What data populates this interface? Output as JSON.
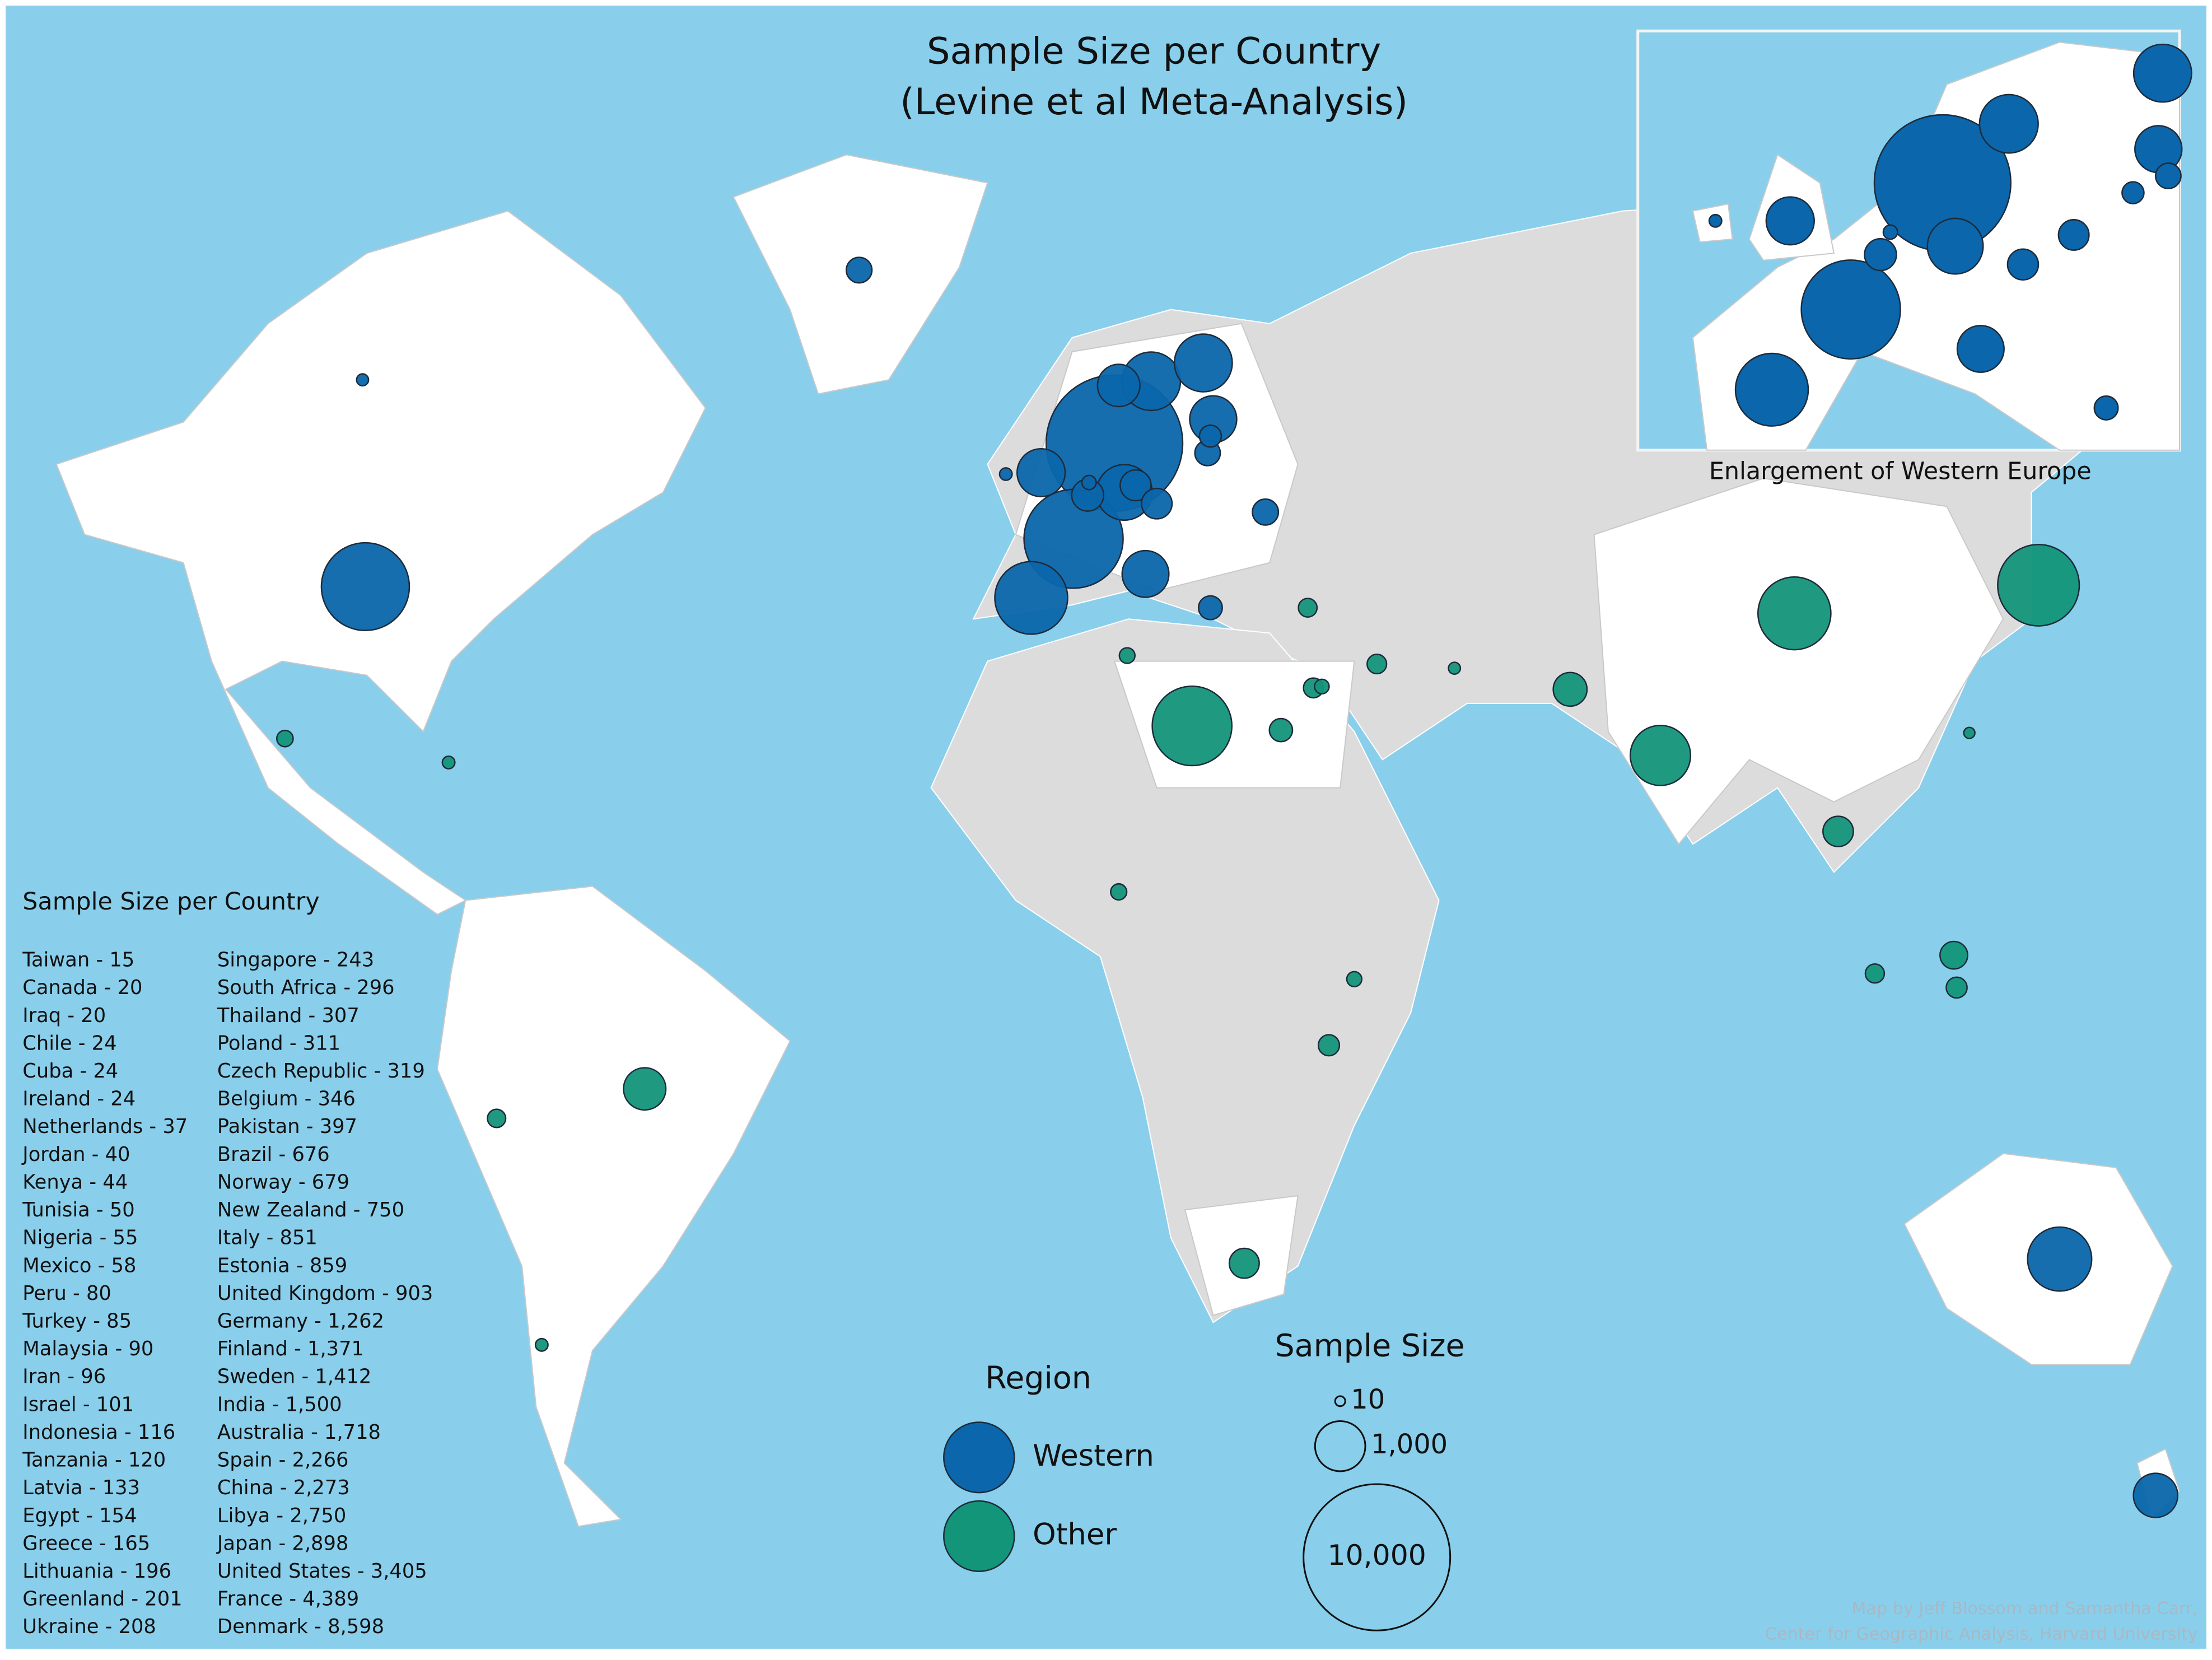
{
  "title": "Sample Size per Country",
  "subtitle": "(Levine et al Meta-Analysis)",
  "inset_label": "Enlargement of Western Europe",
  "list_title": "Sample Size per Country",
  "regions_title": "Region",
  "regions": [
    {
      "name": "Western",
      "color": "#0b66ab"
    },
    {
      "name": "Other",
      "color": "#13957a"
    }
  ],
  "size_title": "Sample Size",
  "size_legend": [
    {
      "value": 10,
      "label": "10"
    },
    {
      "value": 1000,
      "label": "1,000"
    },
    {
      "value": 10000,
      "label": "10,000"
    }
  ],
  "countries": [
    {
      "label": "Taiwan - 15",
      "value": 15,
      "region": 1
    },
    {
      "label": "Canada - 20",
      "value": 20,
      "region": 0
    },
    {
      "label": "Iraq - 20",
      "value": 20,
      "region": 1
    },
    {
      "label": "Chile - 24",
      "value": 24,
      "region": 1
    },
    {
      "label": "Cuba - 24",
      "value": 24,
      "region": 1
    },
    {
      "label": "Ireland - 24",
      "value": 24,
      "region": 0
    },
    {
      "label": "Netherlands - 37",
      "value": 37,
      "region": 0
    },
    {
      "label": "Jordan - 40",
      "value": 40,
      "region": 1
    },
    {
      "label": "Kenya - 44",
      "value": 44,
      "region": 1
    },
    {
      "label": "Tunisia - 50",
      "value": 50,
      "region": 1
    },
    {
      "label": "Nigeria - 55",
      "value": 55,
      "region": 1
    },
    {
      "label": "Mexico - 58",
      "value": 58,
      "region": 1
    },
    {
      "label": "Peru - 80",
      "value": 80,
      "region": 1
    },
    {
      "label": "Turkey - 85",
      "value": 85,
      "region": 1
    },
    {
      "label": "Malaysia - 90",
      "value": 90,
      "region": 1
    },
    {
      "label": "Iran - 96",
      "value": 96,
      "region": 1
    },
    {
      "label": "Israel - 101",
      "value": 101,
      "region": 1
    },
    {
      "label": "Indonesia - 116",
      "value": 116,
      "region": 1
    },
    {
      "label": "Tanzania - 120",
      "value": 120,
      "region": 1
    },
    {
      "label": "Latvia - 133",
      "value": 133,
      "region": 0
    },
    {
      "label": "Egypt - 154",
      "value": 154,
      "region": 1
    },
    {
      "label": "Greece - 165",
      "value": 165,
      "region": 0
    },
    {
      "label": "Lithuania - 196",
      "value": 196,
      "region": 0
    },
    {
      "label": "Greenland - 201",
      "value": 201,
      "region": 0
    },
    {
      "label": "Ukraine - 208",
      "value": 208,
      "region": 0
    },
    {
      "label": "Singapore - 243",
      "value": 243,
      "region": 1
    },
    {
      "label": "South Africa - 296",
      "value": 296,
      "region": 1
    },
    {
      "label": "Thailand - 307",
      "value": 307,
      "region": 1
    },
    {
      "label": "Poland - 311",
      "value": 311,
      "region": 0
    },
    {
      "label": "Czech Republic - 319",
      "value": 319,
      "region": 0
    },
    {
      "label": "Belgium - 346",
      "value": 346,
      "region": 0
    },
    {
      "label": "Pakistan - 397",
      "value": 397,
      "region": 1
    },
    {
      "label": "Brazil - 676",
      "value": 676,
      "region": 1
    },
    {
      "label": "Norway - 679",
      "value": 679,
      "region": 0
    },
    {
      "label": "New Zealand - 750",
      "value": 750,
      "region": 0
    },
    {
      "label": "Italy - 851",
      "value": 851,
      "region": 0
    },
    {
      "label": "Estonia - 859",
      "value": 859,
      "region": 0
    },
    {
      "label": "United Kingdom - 903",
      "value": 903,
      "region": 0
    },
    {
      "label": "Germany - 1,262",
      "value": 1262,
      "region": 0
    },
    {
      "label": "Finland - 1,371",
      "value": 1371,
      "region": 0
    },
    {
      "label": "Sweden - 1,412",
      "value": 1412,
      "region": 0
    },
    {
      "label": "India - 1,500",
      "value": 1500,
      "region": 1
    },
    {
      "label": "Australia - 1,718",
      "value": 1718,
      "region": 0
    },
    {
      "label": "Spain - 2,266",
      "value": 2266,
      "region": 0
    },
    {
      "label": "China - 2,273",
      "value": 2273,
      "region": 1
    },
    {
      "label": "Libya - 2,750",
      "value": 2750,
      "region": 1
    },
    {
      "label": "Japan - 2,898",
      "value": 2898,
      "region": 1
    },
    {
      "label": "United States - 3,405",
      "value": 3405,
      "region": 0
    },
    {
      "label": "France - 4,389",
      "value": 4389,
      "region": 0
    },
    {
      "label": "Denmark - 8,598",
      "value": 8598,
      "region": 0
    }
  ],
  "credit": [
    "Map by Jeff Blossom and Samantha Carr,",
    "Center for Geographic Analysis, Harvard University"
  ]
}
